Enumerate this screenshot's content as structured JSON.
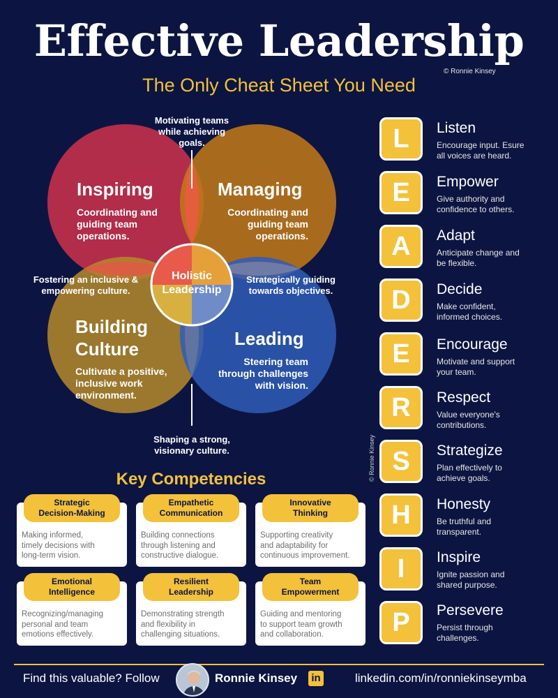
{
  "header": {
    "title": "Effective Leadership",
    "copyright": "© Ronnie Kinsey",
    "subtitle": "The Only Cheat Sheet You Need"
  },
  "venn": {
    "center": [
      "Holistic",
      "Leadership"
    ],
    "inspiring": {
      "title": "Inspiring",
      "desc": [
        "Coordinating and",
        "guiding team",
        "operations."
      ]
    },
    "managing": {
      "title": "Managing",
      "desc": [
        "Coordinating and",
        "guiding team",
        "operations."
      ]
    },
    "building": {
      "title": [
        "Building",
        "Culture"
      ],
      "desc": [
        "Cultivate a positive,",
        "inclusive work",
        "environment."
      ]
    },
    "leading": {
      "title": "Leading",
      "desc": [
        "Steering team",
        "through challenges",
        "with vision."
      ]
    },
    "callouts": {
      "top": [
        "Motivating teams",
        "while achieving",
        "goals."
      ],
      "left": [
        "Fostering an inclusive &",
        "empowering culture."
      ],
      "right": [
        "Strategically guiding",
        "towards objectives."
      ],
      "bottom": [
        "Shaping a strong,",
        "visionary culture."
      ]
    },
    "colors": {
      "inspiring": "#c0304a",
      "managing": "#c47a18",
      "building": "#b58a2c",
      "leading": "#2f5cb8",
      "overlap": "#e8524a"
    }
  },
  "leadership": [
    {
      "letter": "L",
      "word": "Listen",
      "desc": [
        "Encourage input. Esure",
        "all voices are heard."
      ]
    },
    {
      "letter": "E",
      "word": "Empower",
      "desc": [
        "Give authority and",
        "confidence to others."
      ]
    },
    {
      "letter": "A",
      "word": "Adapt",
      "desc": [
        "Anticipate change and",
        "be flexible."
      ]
    },
    {
      "letter": "D",
      "word": "Decide",
      "desc": [
        "Make confident,",
        "informed choices."
      ]
    },
    {
      "letter": "E",
      "word": "Encourage",
      "desc": [
        "Motivate and support",
        "your team."
      ]
    },
    {
      "letter": "R",
      "word": "Respect",
      "desc": [
        "Value everyone's",
        "contributions."
      ]
    },
    {
      "letter": "S",
      "word": "Strategize",
      "desc": [
        "Plan effectively to",
        "achieve goals."
      ]
    },
    {
      "letter": "H",
      "word": "Honesty",
      "desc": [
        "Be truthful and",
        "transparent."
      ]
    },
    {
      "letter": "I",
      "word": "Inspire",
      "desc": [
        "Ignite passion and",
        "shared purpose."
      ]
    },
    {
      "letter": "P",
      "word": "Persevere",
      "desc": [
        "Persist through",
        "challenges."
      ]
    }
  ],
  "vertical_credit": "© Ronnie Kinsey",
  "competencies": {
    "title": "Key Competencies",
    "cards": [
      {
        "tag": [
          "Strategic",
          "Decision-Making"
        ],
        "desc": [
          "Making informed,",
          "timely decisions with",
          "long-term vision."
        ]
      },
      {
        "tag": [
          "Empathetic",
          "Communication"
        ],
        "desc": [
          "Building connections",
          "through listening and",
          "constructive dialogue."
        ]
      },
      {
        "tag": [
          "Innovative",
          "Thinking"
        ],
        "desc": [
          "Supporting creativity",
          "and adaptability for",
          "continuous improvement."
        ]
      },
      {
        "tag": [
          "Emotional",
          "Intelligence"
        ],
        "desc": [
          "Recognizing/managing",
          "personal and team",
          "emotions effectively."
        ]
      },
      {
        "tag": [
          "Resilient",
          "Leadership"
        ],
        "desc": [
          "Demonstrating strength",
          "and flexibility in",
          "challenging situations."
        ]
      },
      {
        "tag": [
          "Team",
          "Empowerment"
        ],
        "desc": [
          "Guiding and mentoring",
          "to support team growth",
          "and collaboration."
        ]
      }
    ]
  },
  "footer": {
    "cta": "Find this valuable? Follow",
    "name": "Ronnie Kinsey",
    "linkedin_icon": "in",
    "url": "linkedin.com/in/ronniekinseymba"
  },
  "colors": {
    "background": "#0c1541",
    "accent": "#f3c13a"
  }
}
